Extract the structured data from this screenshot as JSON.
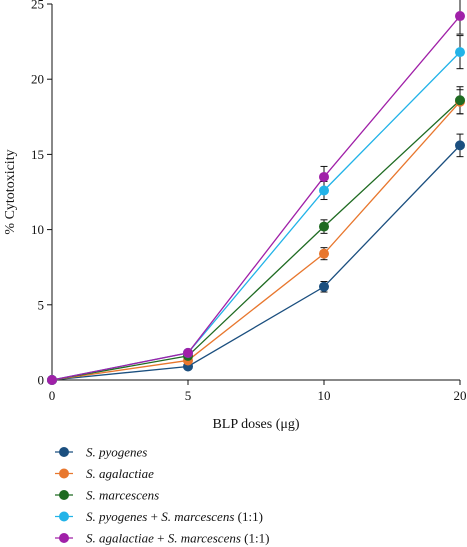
{
  "chart_data": {
    "type": "line",
    "title": "",
    "xlabel": "BLP doses (μg)",
    "ylabel": "% Cytotoxicity",
    "x": [
      0,
      5,
      10,
      20
    ],
    "x_ticks": [
      "0",
      "5",
      "10",
      "20"
    ],
    "x_scale": "categorical-equal-spacing",
    "y_ticks": [
      "0",
      "5",
      "10",
      "15",
      "20",
      "25"
    ],
    "ylim": [
      0,
      25
    ],
    "grid": false,
    "legend_position": "bottom-left",
    "error_bars": true,
    "series": [
      {
        "name": "S. pyogenes",
        "legend": [
          {
            "text": "S. pyogenes",
            "italic": true
          }
        ],
        "color": "#1b4f7f",
        "values": [
          0,
          0.9,
          6.2,
          15.6
        ],
        "errors": [
          0,
          0.2,
          0.35,
          0.75
        ]
      },
      {
        "name": "S. agalactiae",
        "legend": [
          {
            "text": "S. agalactiae",
            "italic": true
          }
        ],
        "color": "#e8772e",
        "values": [
          0,
          1.3,
          8.4,
          18.5
        ],
        "errors": [
          0,
          0.2,
          0.4,
          0.8
        ]
      },
      {
        "name": "S. marcescens",
        "legend": [
          {
            "text": "S. marcescens",
            "italic": true
          }
        ],
        "color": "#1f6b22",
        "values": [
          0,
          1.6,
          10.2,
          18.6
        ],
        "errors": [
          0,
          0.2,
          0.45,
          0.9
        ]
      },
      {
        "name": "S. pyogenes + S. marcescens (1:1)",
        "legend": [
          {
            "text": "S. pyogenes",
            "italic": true
          },
          {
            "text": " + ",
            "italic": false
          },
          {
            "text": "S. marcescens",
            "italic": true
          },
          {
            "text": " (1:1)",
            "italic": false
          }
        ],
        "color": "#22b3e8",
        "values": [
          0,
          1.8,
          12.6,
          21.8
        ],
        "errors": [
          0,
          0.2,
          0.6,
          1.1
        ]
      },
      {
        "name": "S. agalactiae + S. marcescens (1:1)",
        "legend": [
          {
            "text": "S. agalactiae",
            "italic": true
          },
          {
            "text": " + ",
            "italic": false
          },
          {
            "text": "S. marcescens",
            "italic": true
          },
          {
            "text": " (1:1)",
            "italic": false
          }
        ],
        "color": "#a020a8",
        "values": [
          0,
          1.8,
          13.5,
          24.2
        ],
        "errors": [
          0,
          0.2,
          0.7,
          1.2
        ]
      }
    ]
  }
}
